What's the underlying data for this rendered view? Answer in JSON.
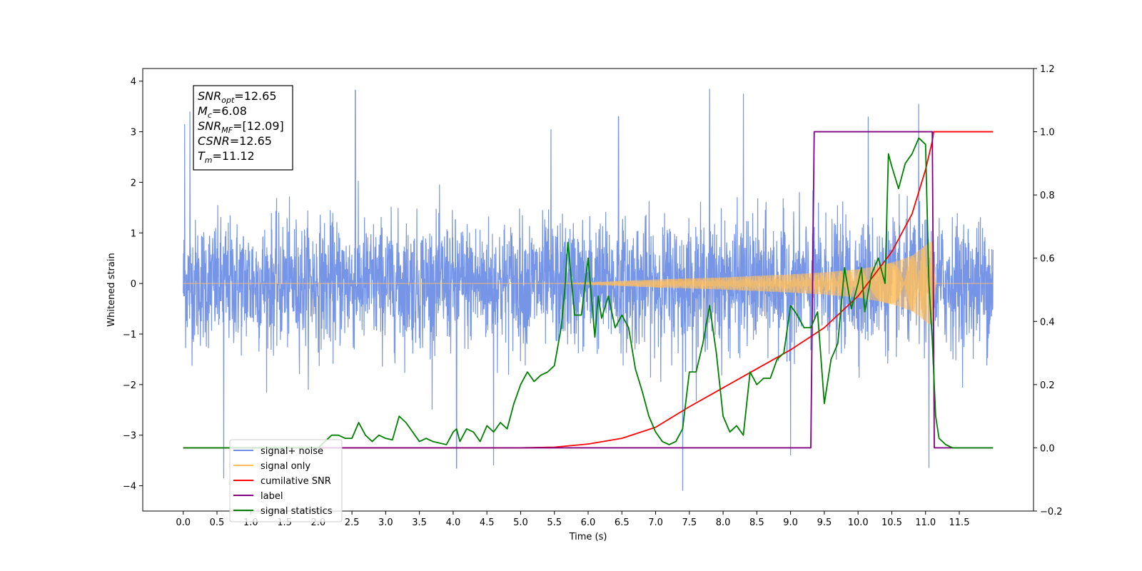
{
  "chart_data": {
    "type": "line",
    "xlabel": "Time (s)",
    "ylabel": "Whitened strain",
    "xlim": [
      -0.6,
      12.6
    ],
    "ylim_left": [
      -4.5,
      4.25
    ],
    "ylim_right": [
      -0.2,
      1.2
    ],
    "x_ticks": [
      "0.0",
      "0.5",
      "1.0",
      "1.5",
      "2.0",
      "2.5",
      "3.0",
      "3.5",
      "4.0",
      "4.5",
      "5.0",
      "5.5",
      "6.0",
      "6.5",
      "7.0",
      "7.5",
      "8.0",
      "8.5",
      "9.0",
      "9.5",
      "10.0",
      "10.5",
      "11.0",
      "11.5"
    ],
    "y_ticks_left": [
      "−4",
      "−3",
      "−2",
      "−1",
      "0",
      "1",
      "2",
      "3",
      "4"
    ],
    "y_ticks_right": [
      "−0.2",
      "0.0",
      "0.2",
      "0.4",
      "0.6",
      "0.8",
      "1.0",
      "1.2"
    ],
    "annotation_box": {
      "lines": [
        {
          "sym": "SNR",
          "sub": "opt",
          "val": "=12.65"
        },
        {
          "sym": "M",
          "sub": "c",
          "val": "=6.08"
        },
        {
          "sym": "SNR",
          "sub": "MF",
          "val": "=[12.09]"
        },
        {
          "sym": "CSNR",
          "sub": "",
          "val": "=12.65"
        },
        {
          "sym": "T",
          "sub": "m",
          "val": "=11.12"
        }
      ]
    },
    "legend": {
      "placement": "lower-left",
      "entries": [
        {
          "label": "signal+ noise",
          "color": "#6f8fe6"
        },
        {
          "label": "signal only",
          "color": "#ffbf5e"
        },
        {
          "label": "cumilative SNR",
          "color": "#ff0000"
        },
        {
          "label": "label",
          "color": "#800080"
        },
        {
          "label": "signal statistics",
          "color": "#008000"
        }
      ]
    },
    "series": [
      {
        "name": "signal+ noise",
        "axis": "left",
        "color": "#6f8fe6",
        "band": {
          "x_start": 0.0,
          "x_end": 12.0,
          "typical_amplitude": 1.8,
          "spikes": [
            [
              0.02,
              3.15
            ],
            [
              0.1,
              3.4
            ],
            [
              0.6,
              -3.85
            ],
            [
              2.55,
              3.82
            ],
            [
              4.05,
              -3.65
            ],
            [
              4.6,
              -3.6
            ],
            [
              5.45,
              3.05
            ],
            [
              6.45,
              3.3
            ],
            [
              7.4,
              -4.1
            ],
            [
              7.8,
              3.85
            ],
            [
              8.3,
              3.75
            ],
            [
              9.0,
              -3.4
            ],
            [
              10.15,
              3.3
            ],
            [
              10.9,
              3.55
            ],
            [
              11.05,
              -3.65
            ]
          ]
        }
      },
      {
        "name": "signal only",
        "axis": "left",
        "color": "#ffbf5e",
        "envelope": [
          [
            0.0,
            0.0
          ],
          [
            5.5,
            0.0
          ],
          [
            6.0,
            0.02
          ],
          [
            6.5,
            0.05
          ],
          [
            7.0,
            0.08
          ],
          [
            7.5,
            0.1
          ],
          [
            8.0,
            0.12
          ],
          [
            8.5,
            0.15
          ],
          [
            9.0,
            0.18
          ],
          [
            9.5,
            0.22
          ],
          [
            10.0,
            0.28
          ],
          [
            10.3,
            0.35
          ],
          [
            10.6,
            0.45
          ],
          [
            10.8,
            0.55
          ],
          [
            11.0,
            0.75
          ],
          [
            11.1,
            0.85
          ],
          [
            11.15,
            0.0
          ],
          [
            12.0,
            0.0
          ]
        ]
      },
      {
        "name": "cumilative SNR",
        "axis": "right",
        "x": [
          0.0,
          5.0,
          5.5,
          6.0,
          6.5,
          7.0,
          7.5,
          8.0,
          8.5,
          9.0,
          9.5,
          10.0,
          10.5,
          10.8,
          11.0,
          11.1,
          11.12,
          12.0
        ],
        "values": [
          0.0,
          0.0,
          0.002,
          0.012,
          0.03,
          0.065,
          0.13,
          0.19,
          0.25,
          0.31,
          0.38,
          0.48,
          0.62,
          0.74,
          0.88,
          0.97,
          1.0,
          1.0
        ]
      },
      {
        "name": "label",
        "axis": "right",
        "x": [
          0.0,
          9.3,
          9.35,
          11.1,
          11.13,
          12.0
        ],
        "values": [
          0.0,
          0.0,
          1.0,
          1.0,
          0.0,
          0.0
        ]
      },
      {
        "name": "signal statistics",
        "axis": "right",
        "x": [
          0.0,
          2.0,
          2.1,
          2.2,
          2.3,
          2.4,
          2.5,
          2.6,
          2.7,
          2.8,
          2.9,
          3.0,
          3.1,
          3.2,
          3.3,
          3.4,
          3.5,
          3.6,
          3.7,
          3.8,
          3.9,
          4.0,
          4.05,
          4.1,
          4.2,
          4.3,
          4.4,
          4.5,
          4.6,
          4.7,
          4.8,
          4.9,
          5.0,
          5.1,
          5.2,
          5.3,
          5.4,
          5.5,
          5.6,
          5.65,
          5.7,
          5.8,
          5.9,
          6.0,
          6.1,
          6.15,
          6.2,
          6.3,
          6.4,
          6.5,
          6.6,
          6.7,
          6.8,
          6.9,
          7.0,
          7.1,
          7.2,
          7.3,
          7.4,
          7.5,
          7.6,
          7.7,
          7.8,
          7.9,
          8.0,
          8.1,
          8.2,
          8.3,
          8.4,
          8.5,
          8.6,
          8.7,
          8.8,
          8.9,
          9.0,
          9.1,
          9.2,
          9.3,
          9.4,
          9.5,
          9.6,
          9.7,
          9.8,
          9.9,
          10.0,
          10.05,
          10.1,
          10.2,
          10.3,
          10.4,
          10.45,
          10.5,
          10.6,
          10.7,
          10.8,
          10.9,
          11.0,
          11.05,
          11.1,
          11.15,
          11.2,
          11.3,
          11.4,
          11.5,
          12.0
        ],
        "values": [
          0.0,
          0.0,
          0.02,
          0.04,
          0.04,
          0.03,
          0.03,
          0.08,
          0.04,
          0.02,
          0.04,
          0.03,
          0.025,
          0.1,
          0.08,
          0.05,
          0.02,
          0.03,
          0.02,
          0.015,
          0.01,
          0.05,
          0.06,
          0.02,
          0.06,
          0.05,
          0.02,
          0.07,
          0.05,
          0.08,
          0.06,
          0.14,
          0.2,
          0.24,
          0.21,
          0.23,
          0.24,
          0.26,
          0.38,
          0.49,
          0.65,
          0.42,
          0.42,
          0.6,
          0.35,
          0.48,
          0.41,
          0.48,
          0.38,
          0.42,
          0.38,
          0.25,
          0.18,
          0.1,
          0.05,
          0.02,
          0.01,
          0.02,
          0.06,
          0.24,
          0.24,
          0.33,
          0.45,
          0.3,
          0.1,
          0.05,
          0.07,
          0.04,
          0.24,
          0.2,
          0.22,
          0.22,
          0.28,
          0.3,
          0.45,
          0.42,
          0.38,
          0.38,
          0.43,
          0.14,
          0.28,
          0.33,
          0.57,
          0.44,
          0.52,
          0.57,
          0.43,
          0.55,
          0.6,
          0.52,
          0.93,
          0.89,
          0.82,
          0.9,
          0.93,
          0.98,
          0.96,
          0.52,
          0.34,
          0.1,
          0.03,
          0.01,
          0.0,
          0.0,
          0.0
        ]
      }
    ]
  }
}
